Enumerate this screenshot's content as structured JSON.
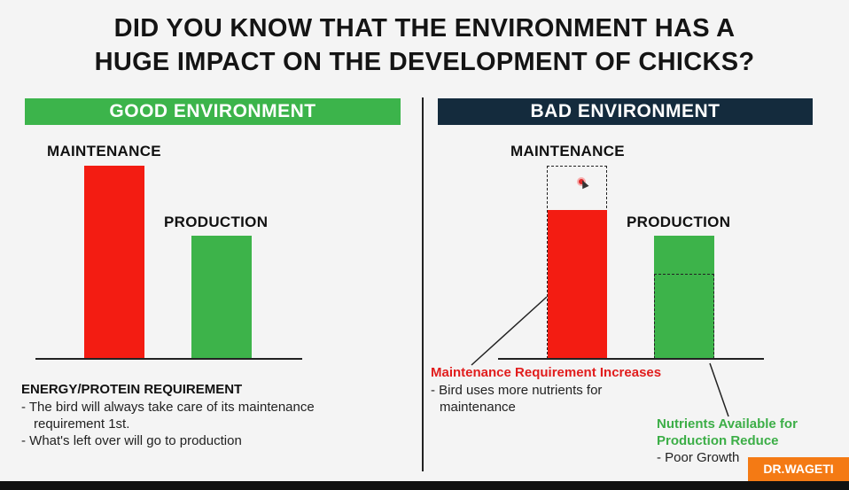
{
  "title": {
    "line1": "DID YOU KNOW THAT THE ENVIRONMENT HAS A",
    "line2": "HUGE IMPACT ON THE DEVELOPMENT OF CHICKS?"
  },
  "good": {
    "banner": "GOOD ENVIRONMENT",
    "maintenance_label": "MAINTENANCE",
    "production_label": "PRODUCTION",
    "heading": "ENERGY/PROTEIN REQUIREMENT",
    "bullet1_line1": "- The bird will always take care of its maintenance",
    "bullet1_line2": "requirement 1st.",
    "bullet2": "- What's left over will go to production"
  },
  "bad": {
    "banner": "BAD ENVIRONMENT",
    "maintenance_label": "MAINTENANCE",
    "production_label": "PRODUCTION",
    "maintenance_note": "Maintenance Requirement Increases",
    "maintenance_sub_line1": "- Bird uses more nutrients for",
    "maintenance_sub_line2": "maintenance",
    "production_note_line1": "Nutrients Available for",
    "production_note_line2": "Production Reduce",
    "production_sub": "- Poor Growth"
  },
  "watermark": "DR.WAGETI",
  "colors": {
    "green": "#3cb44b",
    "navy": "#142b3d",
    "red": "#f31c12",
    "orange": "#f47a14"
  }
}
